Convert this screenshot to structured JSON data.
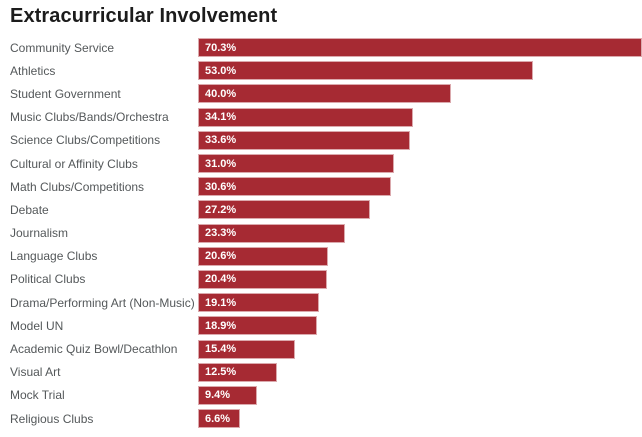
{
  "page": {
    "title": "Extracurricular Involvement"
  },
  "colors": {
    "background": "#ffffff",
    "bar_fill": "#a62a33",
    "bar_border": "rgba(255,255,255,0.6)",
    "category_label": "#54585a",
    "title_text": "#1c1c1c",
    "value_text": "#ffffff"
  },
  "chart_data": {
    "type": "bar",
    "orientation": "horizontal",
    "title": "Extracurricular Involvement",
    "xlabel": "",
    "ylabel": "",
    "xlim": [
      0,
      70.3
    ],
    "grid": false,
    "legend": false,
    "data_labels_position": "inside-left",
    "categories": [
      "Community Service",
      "Athletics",
      "Student Government",
      "Music Clubs/Bands/Orchestra",
      "Science Clubs/Competitions",
      "Cultural or Affinity Clubs",
      "Math Clubs/Competitions",
      "Debate",
      "Journalism",
      "Language Clubs",
      "Political Clubs",
      "Drama/Performing Art (Non-Music)",
      "Model UN",
      "Academic Quiz Bowl/Decathlon",
      "Visual Art",
      "Mock Trial",
      "Religious Clubs"
    ],
    "values": [
      70.3,
      53.0,
      40.0,
      34.1,
      33.6,
      31.0,
      30.6,
      27.2,
      23.3,
      20.6,
      20.4,
      19.1,
      18.9,
      15.4,
      12.5,
      9.4,
      6.6
    ],
    "value_labels": [
      "70.3%",
      "53.0%",
      "40.0%",
      "34.1%",
      "33.6%",
      "31.0%",
      "30.6%",
      "27.2%",
      "23.3%",
      "20.6%",
      "20.4%",
      "19.1%",
      "18.9%",
      "15.4%",
      "12.5%",
      "9.4%",
      "6.6%"
    ]
  }
}
